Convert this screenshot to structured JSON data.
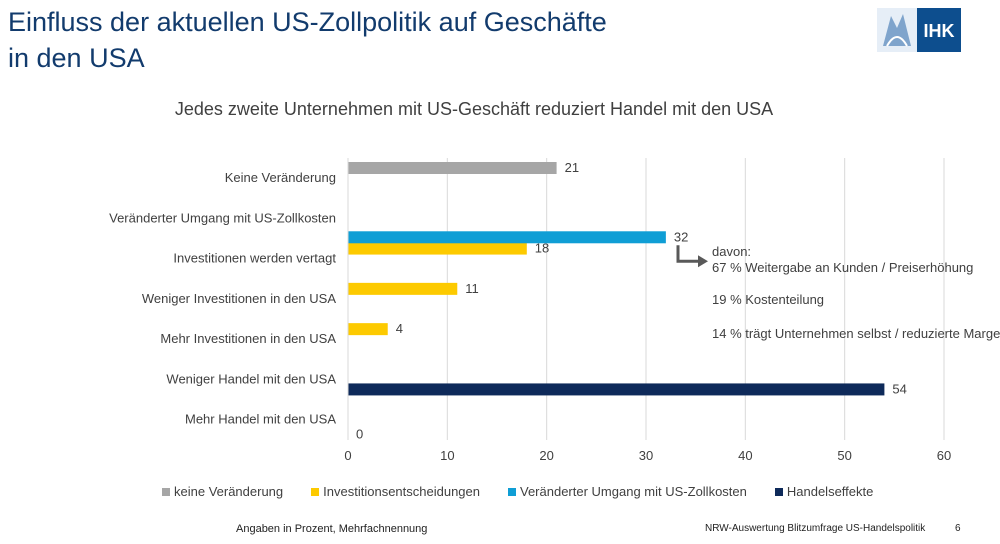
{
  "slide": {
    "title_line1": "Einfluss der aktuellen US-Zollpolitik auf Geschäfte",
    "title_line2": "in den USA",
    "subtitle": "Jedes zweite Unternehmen mit US-Geschäft reduziert Handel mit den USA",
    "logo_text": "IHK",
    "footer_left": "Angaben in Prozent, Mehrfachnennung",
    "footer_right": "NRW-Auswertung Blitzumfrage US-Handelspolitik",
    "page_number": "6"
  },
  "annotation": {
    "head": "davon:",
    "lines": [
      "67 % Weitergabe an Kunden / Preiserhöhung",
      "19 % Kostenteilung",
      "14 % trägt Unternehmen selbst / reduzierte Marge"
    ]
  },
  "chart_data": {
    "type": "bar",
    "orientation": "horizontal",
    "title": "",
    "xlabel": "",
    "ylabel": "",
    "xlim": [
      0,
      60
    ],
    "xticks": [
      0,
      10,
      20,
      30,
      40,
      50,
      60
    ],
    "grid": "vertical",
    "legend_position": "bottom",
    "categories": [
      "Keine Veränderung",
      "Veränderter Umgang mit US-Zollkosten",
      "Investitionen werden vertagt",
      "Weniger Investitionen in den USA",
      "Mehr Investitionen in den USA",
      "Weniger Handel mit den USA",
      "Mehr Handel mit den USA"
    ],
    "series": [
      {
        "name": "keine Veränderung",
        "color": "#a6a6a6",
        "values": [
          21,
          null,
          null,
          null,
          null,
          null,
          null
        ]
      },
      {
        "name": "Investitionsentscheidungen",
        "color": "#fdca00",
        "values": [
          null,
          null,
          18,
          11,
          4,
          null,
          null
        ]
      },
      {
        "name": "Veränderter Umgang mit US-Zollkosten",
        "color": "#0f9ed5",
        "values": [
          null,
          32,
          null,
          null,
          null,
          null,
          null
        ]
      },
      {
        "name": "Handelseffekte",
        "color": "#0e2a5a",
        "values": [
          null,
          null,
          null,
          null,
          null,
          54,
          0
        ]
      }
    ]
  }
}
